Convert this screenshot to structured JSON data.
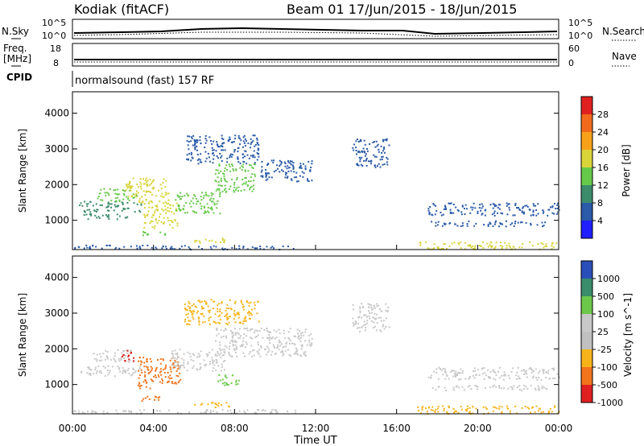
{
  "header": {
    "title": "Kodiak (fitACF)",
    "subtitle": "Beam 01  17/Jun/2015 - 18/Jun/2015"
  },
  "status_panel": {
    "nsky_label": "N.Sky",
    "nsearch_label": "N.Search",
    "freq_label_1": "Freq.",
    "freq_label_2": "[MHz]",
    "nave_label": "Nave",
    "cpid_label": "CPID",
    "cpid_text": "normalsound (fast) 157 RF",
    "noise_ticks": [
      "10^5",
      "10^0"
    ],
    "freq_ticks": [
      "18",
      "8"
    ],
    "nave_ticks": [
      "60",
      "0"
    ]
  },
  "chart_data": [
    {
      "type": "heatmap",
      "title": "",
      "xlabel": "Time UT",
      "ylabel": "Slant Range [km]",
      "x_ticks": [
        "00:00",
        "04:00",
        "08:00",
        "12:00",
        "16:00",
        "20:00",
        "00:00"
      ],
      "xlim": [
        0,
        24
      ],
      "ylim": [
        180,
        4600
      ],
      "y_ticks": [
        1000,
        2000,
        3000,
        4000
      ],
      "colorbar": {
        "label": "Power [dB]",
        "ticks": [
          4,
          8,
          12,
          16,
          20,
          24,
          28
        ],
        "colors": [
          "#1f1fff",
          "#2a5aa8",
          "#3c8c6c",
          "#67c94a",
          "#d9d43a",
          "#f7a21a",
          "#f26b1d",
          "#e02020"
        ]
      },
      "regions": [
        {
          "t0": 0.3,
          "t1": 3.5,
          "r0": 1250,
          "r1": 1550,
          "level": 10
        },
        {
          "t0": 1.2,
          "t1": 3.2,
          "r0": 1550,
          "r1": 1900,
          "level": 14
        },
        {
          "t0": 2.6,
          "t1": 4.8,
          "r0": 1500,
          "r1": 2200,
          "level": 18
        },
        {
          "t0": 3.5,
          "t1": 5.2,
          "r0": 800,
          "r1": 1500,
          "level": 20
        },
        {
          "t0": 5.0,
          "t1": 7.3,
          "r0": 1200,
          "r1": 1800,
          "level": 14
        },
        {
          "t0": 7.0,
          "t1": 9.0,
          "r0": 1800,
          "r1": 2600,
          "level": 16
        },
        {
          "t0": 5.6,
          "t1": 9.2,
          "r0": 2600,
          "r1": 3400,
          "level": 8
        },
        {
          "t0": 9.2,
          "t1": 11.8,
          "r0": 2100,
          "r1": 2700,
          "level": 7
        },
        {
          "t0": 13.8,
          "t1": 15.6,
          "r0": 2500,
          "r1": 3300,
          "level": 6
        },
        {
          "t0": 0.5,
          "t1": 3.0,
          "r0": 1050,
          "r1": 1200,
          "level": 9
        },
        {
          "t0": 6.0,
          "t1": 7.8,
          "r0": 380,
          "r1": 520,
          "level": 20
        },
        {
          "t0": 3.4,
          "t1": 4.6,
          "r0": 560,
          "r1": 700,
          "level": 14
        },
        {
          "t0": 17.5,
          "t1": 24.0,
          "r0": 1150,
          "r1": 1500,
          "level": 8
        },
        {
          "t0": 17.5,
          "t1": 23.5,
          "r0": 850,
          "r1": 1000,
          "level": 7
        },
        {
          "t0": 17.0,
          "t1": 24.0,
          "r0": 200,
          "r1": 420,
          "level": 18
        },
        {
          "t0": 0.0,
          "t1": 11.0,
          "r0": 200,
          "r1": 320,
          "level": 6
        }
      ]
    },
    {
      "type": "heatmap",
      "title": "",
      "xlabel": "Time UT",
      "ylabel": "Slant Range [km]",
      "x_ticks": [
        "00:00",
        "04:00",
        "08:00",
        "12:00",
        "16:00",
        "20:00",
        "00:00"
      ],
      "xlim": [
        0,
        24
      ],
      "ylim": [
        180,
        4600
      ],
      "y_ticks": [
        1000,
        2000,
        3000,
        4000
      ],
      "colorbar": {
        "label": "Velocity [m s^-1]",
        "ticks": [
          1000,
          500,
          100,
          25,
          -25,
          -100,
          -500,
          -1000
        ],
        "colors": [
          "#2b4fb8",
          "#3a8c6a",
          "#6cc84a",
          "#c8c8c8",
          "#c0c0c0",
          "#f7b41a",
          "#f2741d",
          "#e02020"
        ]
      },
      "regions": [
        {
          "t0": 0.3,
          "t1": 3.4,
          "r0": 1250,
          "r1": 1550,
          "level": 25
        },
        {
          "t0": 1.0,
          "t1": 3.0,
          "r0": 1650,
          "r1": 2000,
          "level": 25
        },
        {
          "t0": 2.4,
          "t1": 3.0,
          "r0": 1650,
          "r1": 2000,
          "level": -1000
        },
        {
          "t0": 3.2,
          "t1": 5.3,
          "r0": 900,
          "r1": 1800,
          "level": -500
        },
        {
          "t0": 4.8,
          "t1": 7.5,
          "r0": 1400,
          "r1": 2000,
          "level": 25
        },
        {
          "t0": 7.0,
          "t1": 8.2,
          "r0": 1000,
          "r1": 1300,
          "level": 100
        },
        {
          "t0": 7.0,
          "t1": 11.8,
          "r0": 1800,
          "r1": 2600,
          "level": 25
        },
        {
          "t0": 5.5,
          "t1": 9.2,
          "r0": 2700,
          "r1": 3400,
          "level": -100
        },
        {
          "t0": 13.8,
          "t1": 15.6,
          "r0": 2500,
          "r1": 3300,
          "level": 25
        },
        {
          "t0": 6.0,
          "t1": 7.8,
          "r0": 380,
          "r1": 520,
          "level": -100
        },
        {
          "t0": 3.3,
          "t1": 4.6,
          "r0": 560,
          "r1": 700,
          "level": -500
        },
        {
          "t0": 17.5,
          "t1": 24.0,
          "r0": 1150,
          "r1": 1500,
          "level": 25
        },
        {
          "t0": 17.5,
          "t1": 23.5,
          "r0": 850,
          "r1": 1000,
          "level": 25
        },
        {
          "t0": 17.0,
          "t1": 24.0,
          "r0": 200,
          "r1": 420,
          "level": -100
        },
        {
          "t0": 0.0,
          "t1": 11.0,
          "r0": 200,
          "r1": 320,
          "level": 25
        }
      ]
    }
  ]
}
